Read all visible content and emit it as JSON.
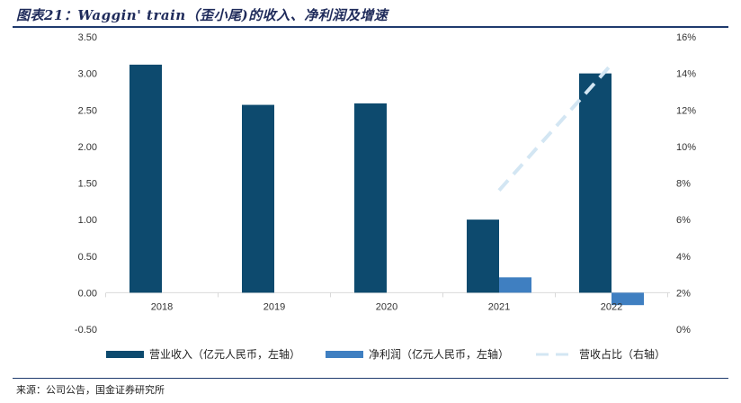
{
  "figure_title": "图表21：Waggin' train（歪小尾)的收入、净利润及增速",
  "source": "来源：公司公告，国金证券研究所",
  "chart_data": {
    "type": "bar",
    "categories": [
      "2018",
      "2019",
      "2020",
      "2021",
      "2022"
    ],
    "series": [
      {
        "name": "营业收入（亿元人民币，左轴）",
        "kind": "bar",
        "axis": "left",
        "values": [
          3.12,
          2.57,
          2.59,
          1.0,
          3.0
        ],
        "color": "#0d4a6e"
      },
      {
        "name": "净利润（亿元人民币，左轴）",
        "kind": "bar",
        "axis": "left",
        "values": [
          null,
          null,
          null,
          0.21,
          -0.17
        ],
        "color": "#3f7fc1"
      },
      {
        "name": "营收占比（右轴）",
        "kind": "line",
        "axis": "right",
        "dashed": true,
        "values": [
          null,
          null,
          null,
          7.6,
          14.5
        ],
        "color": "#d3e6f3"
      }
    ],
    "left_axis": {
      "min": -0.5,
      "max": 3.5,
      "ticks": [
        "3.50",
        "3.00",
        "2.50",
        "2.00",
        "1.50",
        "1.00",
        "0.50",
        "0.00",
        "-0.50"
      ]
    },
    "right_axis": {
      "min": 0,
      "max": 16,
      "ticks": [
        "16%",
        "14%",
        "12%",
        "10%",
        "8%",
        "6%",
        "4%",
        "2%",
        "0%"
      ]
    },
    "grid": false,
    "legend_position": "bottom"
  }
}
